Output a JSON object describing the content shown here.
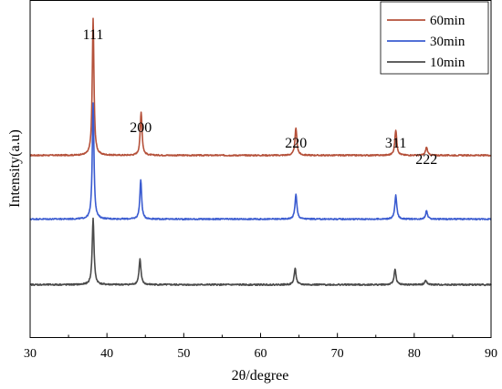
{
  "chart_data": {
    "type": "line",
    "title": "",
    "xlabel": "2θ/degree",
    "ylabel": "Intensity(a.u)",
    "xlim": [
      30,
      90
    ],
    "xticks": [
      "30",
      "40",
      "50",
      "60",
      "70",
      "80",
      "90"
    ],
    "y_ticks_shown": false,
    "grid": false,
    "legend_placement": "top-right",
    "peak_labels": [
      {
        "text": "111",
        "x": 38.2
      },
      {
        "text": "200",
        "x": 44.4
      },
      {
        "text": "220",
        "x": 64.6
      },
      {
        "text": "311",
        "x": 77.6
      },
      {
        "text": "222",
        "x": 81.6
      }
    ],
    "series": [
      {
        "name": "60min",
        "color": "#b5513a",
        "baseline": 200,
        "noise": 0.7,
        "peaks": [
          {
            "x": 38.2,
            "height": 150,
            "width": 0.13
          },
          {
            "x": 44.45,
            "height": 48,
            "width": 0.14
          },
          {
            "x": 64.6,
            "height": 30,
            "width": 0.15
          },
          {
            "x": 77.6,
            "height": 28,
            "width": 0.15
          },
          {
            "x": 81.6,
            "height": 9,
            "width": 0.15
          }
        ]
      },
      {
        "name": "30min",
        "color": "#3a5bd0",
        "baseline": 130,
        "noise": 0.7,
        "peaks": [
          {
            "x": 38.2,
            "height": 128,
            "width": 0.13
          },
          {
            "x": 44.4,
            "height": 43,
            "width": 0.14
          },
          {
            "x": 64.6,
            "height": 27,
            "width": 0.15
          },
          {
            "x": 77.6,
            "height": 26,
            "width": 0.15
          },
          {
            "x": 81.6,
            "height": 9,
            "width": 0.15
          }
        ]
      },
      {
        "name": "10min",
        "color": "#4a4a4a",
        "baseline": 58,
        "noise": 0.8,
        "peaks": [
          {
            "x": 38.2,
            "height": 73,
            "width": 0.14
          },
          {
            "x": 44.3,
            "height": 28,
            "width": 0.15
          },
          {
            "x": 64.5,
            "height": 18,
            "width": 0.15
          },
          {
            "x": 77.5,
            "height": 17,
            "width": 0.15
          },
          {
            "x": 81.5,
            "height": 5,
            "width": 0.15
          }
        ]
      }
    ]
  }
}
